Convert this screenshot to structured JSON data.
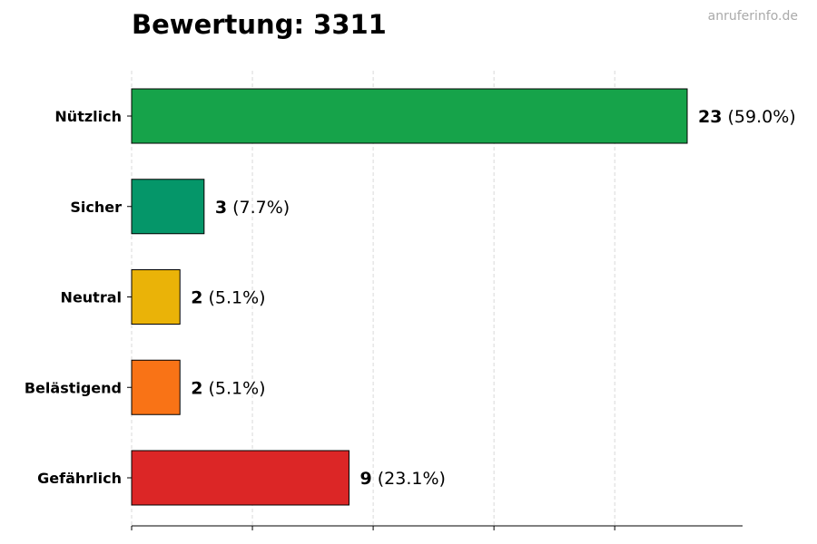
{
  "header": {
    "title": "Bewertung: 3311",
    "watermark": "anruferinfo.de"
  },
  "chart_data": {
    "type": "bar",
    "orientation": "horizontal",
    "title": "Bewertung: 3311",
    "xlabel": "",
    "ylabel": "",
    "xlim": [
      0,
      22
    ],
    "grid": "vertical dashed",
    "categories": [
      "Nützlich",
      "Sicher",
      "Neutral",
      "Belästigend",
      "Gefährlich"
    ],
    "values": [
      23,
      3,
      2,
      2,
      9
    ],
    "percent_labels": [
      "(59.0%)",
      "(7.7%)",
      "(5.1%)",
      "(5.1%)",
      "(23.1%)"
    ],
    "colors": [
      "#16a34a",
      "#059669",
      "#eab308",
      "#f97316",
      "#dc2626"
    ]
  }
}
